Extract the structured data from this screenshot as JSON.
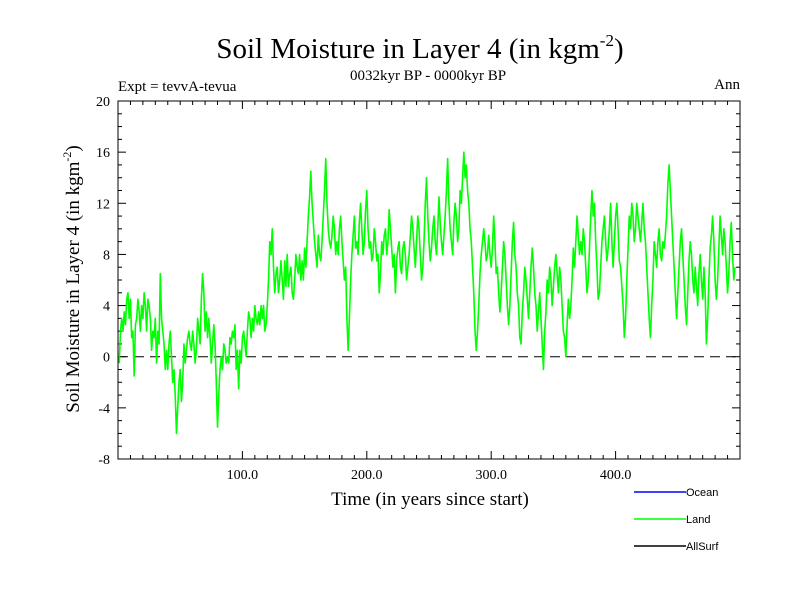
{
  "chart_data": {
    "type": "line",
    "title_main": "Soil Moisture in Layer 4 (in kgm",
    "title_sup": "-2",
    "title_close": ")",
    "subtitle": "0032kyr BP - 0000kyr BP",
    "expt_label": "Expt = tevvA-tevua",
    "season_label": "Ann",
    "xlabel": "Time (in years since start)",
    "ylabel_main": "Soil Moisture in Layer 4 (in kgm",
    "ylabel_sup": "-2",
    "ylabel_close": ")",
    "xlim": [
      0,
      500
    ],
    "ylim": [
      -8,
      20
    ],
    "x_ticks": [
      100,
      200,
      300,
      400
    ],
    "x_tick_labels": [
      "100.0",
      "200.0",
      "300.0",
      "400.0"
    ],
    "y_ticks": [
      -8,
      -4,
      0,
      4,
      8,
      12,
      16,
      20
    ],
    "y_tick_labels": [
      "-8",
      "-4",
      "0",
      "4",
      "8",
      "12",
      "16",
      "20"
    ],
    "zero_line": true,
    "legend": [
      {
        "name": "Ocean",
        "color": "#0000ff"
      },
      {
        "name": "Land",
        "color": "#00ff00"
      },
      {
        "name": "AllSurf",
        "color": "#000000"
      }
    ],
    "series": [
      {
        "name": "Land",
        "color": "#00ff00",
        "x_start": 1,
        "x_step": 1,
        "values": [
          -0.5,
          2.0,
          3.0,
          2.0,
          3.5,
          2.5,
          4.5,
          5.0,
          3.0,
          4.5,
          1.5,
          2.0,
          -1.5,
          2.5,
          3.0,
          4.5,
          3.5,
          2.0,
          4.0,
          3.0,
          5.0,
          4.0,
          2.0,
          4.5,
          4.0,
          3.0,
          0.5,
          2.0,
          1.5,
          3.0,
          -0.5,
          2.0,
          1.0,
          6.5,
          3.0,
          2.0,
          1.0,
          -1.0,
          0.5,
          -1.0,
          1.0,
          2.0,
          0.0,
          -2.0,
          -1.0,
          -3.0,
          -6.0,
          -4.0,
          -2.0,
          -1.0,
          -3.5,
          -2.0,
          1.0,
          -0.5,
          0.5,
          1.5,
          2.0,
          1.0,
          0.5,
          2.0,
          1.0,
          -0.5,
          0.5,
          3.0,
          2.0,
          1.0,
          4.5,
          6.5,
          5.0,
          2.0,
          3.5,
          1.5,
          3.0,
          1.5,
          -0.5,
          1.0,
          2.5,
          1.0,
          -2.0,
          -5.5,
          -3.0,
          -1.0,
          0.0,
          -1.0,
          1.0,
          0.5,
          -0.5,
          0.0,
          -0.5,
          1.5,
          1.0,
          2.0,
          1.5,
          2.5,
          -1.0,
          0.5,
          -2.5,
          0.5,
          -0.5,
          1.5,
          2.0,
          1.0,
          0.0,
          2.0,
          3.5,
          3.0,
          1.5,
          3.0,
          2.0,
          4.0,
          3.0,
          2.5,
          3.5,
          2.5,
          4.0,
          3.0,
          4.0,
          2.0,
          2.5,
          4.0,
          6.0,
          9.0,
          8.0,
          10.0,
          7.0,
          5.0,
          6.5,
          7.0,
          5.0,
          6.0,
          7.5,
          6.0,
          4.5,
          7.5,
          5.5,
          8.0,
          5.5,
          6.5,
          7.0,
          5.0,
          4.5,
          6.0,
          8.0,
          7.0,
          6.5,
          8.0,
          6.0,
          7.5,
          6.0,
          8.5,
          7.0,
          9.0,
          11.0,
          12.5,
          14.5,
          12.0,
          10.5,
          9.0,
          8.0,
          7.0,
          9.5,
          8.0,
          7.5,
          9.0,
          11.0,
          13.0,
          15.5,
          12.0,
          10.0,
          9.0,
          8.5,
          9.5,
          11.0,
          10.0,
          8.0,
          9.0,
          8.0,
          10.0,
          11.0,
          9.0,
          7.5,
          6.0,
          7.0,
          3.0,
          0.5,
          3.0,
          6.0,
          8.0,
          9.5,
          11.0,
          8.5,
          9.0,
          8.0,
          10.5,
          12.0,
          10.0,
          8.0,
          9.0,
          11.5,
          13.0,
          10.0,
          8.5,
          9.0,
          7.5,
          8.0,
          10.0,
          9.0,
          7.5,
          8.0,
          5.0,
          6.5,
          9.0,
          8.0,
          9.5,
          10.0,
          8.0,
          9.0,
          11.5,
          10.0,
          8.5,
          7.0,
          8.0,
          5.0,
          7.5,
          8.5,
          9.0,
          7.0,
          6.5,
          8.5,
          9.0,
          8.0,
          6.0,
          7.0,
          8.0,
          9.5,
          11.0,
          10.0,
          8.5,
          7.0,
          9.0,
          11.0,
          10.0,
          8.0,
          6.0,
          7.0,
          9.0,
          12.0,
          14.0,
          11.0,
          9.0,
          7.5,
          8.5,
          10.0,
          11.0,
          9.0,
          8.0,
          10.0,
          12.5,
          10.5,
          9.0,
          8.0,
          9.5,
          11.0,
          13.0,
          15.5,
          12.0,
          10.0,
          9.0,
          8.0,
          10.5,
          12.0,
          11.0,
          9.0,
          10.0,
          13.0,
          12.0,
          14.0,
          16.0,
          14.0,
          15.0,
          13.0,
          12.0,
          10.0,
          9.0,
          7.0,
          5.0,
          2.0,
          0.5,
          2.0,
          4.0,
          6.5,
          8.0,
          9.0,
          10.0,
          9.0,
          7.5,
          8.0,
          9.5,
          8.0,
          7.0,
          8.5,
          11.0,
          9.0,
          6.5,
          7.0,
          5.0,
          3.5,
          5.0,
          7.0,
          9.0,
          8.0,
          6.0,
          4.0,
          2.5,
          4.0,
          6.5,
          9.0,
          10.5,
          8.0,
          7.0,
          5.0,
          4.0,
          1.5,
          1.0,
          3.5,
          5.0,
          7.0,
          6.0,
          4.5,
          3.0,
          5.0,
          7.0,
          8.5,
          7.0,
          5.0,
          4.0,
          2.0,
          3.5,
          5.0,
          3.0,
          1.0,
          -1.0,
          2.0,
          3.5,
          6.0,
          5.0,
          7.0,
          6.0,
          4.0,
          5.5,
          7.0,
          8.0,
          6.5,
          5.0,
          7.0,
          6.0,
          4.0,
          2.0,
          1.5,
          0.0,
          2.5,
          4.5,
          3.0,
          4.0,
          6.0,
          8.5,
          7.0,
          9.0,
          11.0,
          9.5,
          8.0,
          9.0,
          8.0,
          10.0,
          9.0,
          7.0,
          5.0,
          6.0,
          8.5,
          11.0,
          13.0,
          11.0,
          12.0,
          9.0,
          7.0,
          4.5,
          5.0,
          7.0,
          9.0,
          10.0,
          11.0,
          9.0,
          7.5,
          8.5,
          10.0,
          12.0,
          9.0,
          7.0,
          9.0,
          11.0,
          12.0,
          10.0,
          7.5,
          7.0,
          5.5,
          4.0,
          1.5,
          3.0,
          6.0,
          8.5,
          11.0,
          10.0,
          12.0,
          11.0,
          9.0,
          10.0,
          12.0,
          11.0,
          10.0,
          9.0,
          10.5,
          12.0,
          10.0,
          9.0,
          7.0,
          5.0,
          3.0,
          1.5,
          4.0,
          6.0,
          9.0,
          8.0,
          7.0,
          9.0,
          10.0,
          8.0,
          7.5,
          9.0,
          8.5,
          9.5,
          11.0,
          13.5,
          15.0,
          13.0,
          11.0,
          9.0,
          7.0,
          5.0,
          3.0,
          5.0,
          7.0,
          9.0,
          10.0,
          8.0,
          6.0,
          4.0,
          2.5,
          5.0,
          7.5,
          9.0,
          8.0,
          6.0,
          5.0,
          7.0,
          5.5,
          4.0,
          6.5,
          8.0,
          6.0,
          4.5,
          7.0,
          5.0,
          1.0,
          3.0,
          6.0,
          8.5,
          9.5,
          11.0,
          9.0,
          6.0,
          4.5,
          6.0,
          8.5,
          11.0,
          9.5,
          8.0,
          10.0,
          9.0,
          7.0,
          5.0,
          6.5,
          9.0,
          10.5,
          8.0,
          6.0,
          7.0
        ]
      }
    ]
  }
}
